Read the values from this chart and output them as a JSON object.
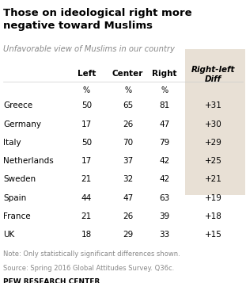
{
  "title": "Those on ideological right more\nnegative toward Muslims",
  "subtitle": "Unfavorable view of Muslims in our country",
  "countries": [
    "Greece",
    "Germany",
    "Italy",
    "Netherlands",
    "Sweden",
    "Spain",
    "France",
    "UK"
  ],
  "left_vals": [
    50,
    17,
    50,
    17,
    21,
    44,
    21,
    18
  ],
  "center_vals": [
    65,
    26,
    70,
    37,
    32,
    47,
    26,
    29
  ],
  "right_vals": [
    81,
    47,
    79,
    42,
    42,
    63,
    39,
    33
  ],
  "diff_vals": [
    "+31",
    "+30",
    "+29",
    "+25",
    "+21",
    "+19",
    "+18",
    "+15"
  ],
  "note": "Note: Only statistically significant differences shown.",
  "source": "Source: Spring 2016 Global Attitudes Survey. Q36c.",
  "pew": "PEW RESEARCH CENTER",
  "bg_color": "#ffffff",
  "diff_bg_color": "#e8e0d5",
  "title_color": "#000000",
  "subtitle_color": "#888888",
  "header_color": "#000000",
  "data_color": "#000000",
  "note_color": "#888888",
  "pew_color": "#000000"
}
